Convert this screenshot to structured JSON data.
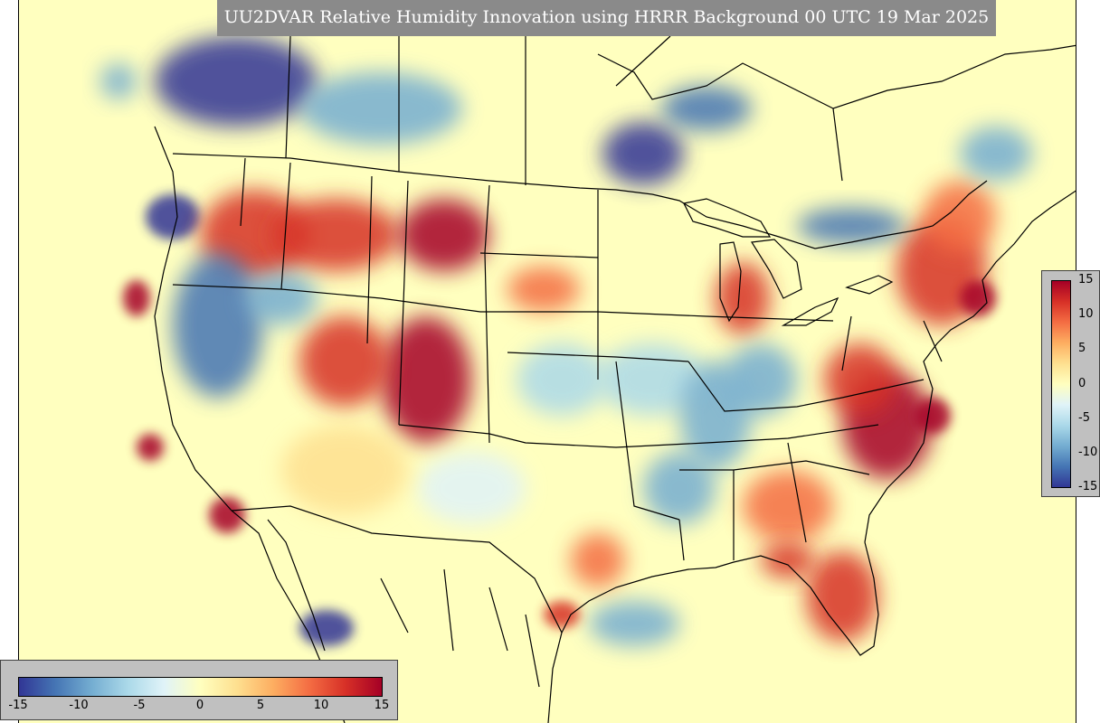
{
  "title": "UU2DVAR Relative Humidity Innovation using HRRR Background 00 UTC 19 Mar 2025",
  "colorbar": {
    "min": -15,
    "max": 15,
    "ticks_vertical": [
      "15",
      "10",
      "5",
      "0",
      "-5",
      "-10",
      "-15"
    ],
    "ticks_horizontal": [
      "-15",
      "-10",
      "-5",
      "0",
      "5",
      "10",
      "15"
    ],
    "colors": [
      "#313695",
      "#4575b4",
      "#74add1",
      "#abd9e9",
      "#e0f3f8",
      "#ffffbf",
      "#fee090",
      "#fdae61",
      "#f46d43",
      "#d73027",
      "#a50026"
    ]
  },
  "map": {
    "background_color": "#ffffbf",
    "coastline_color": "#000000"
  }
}
